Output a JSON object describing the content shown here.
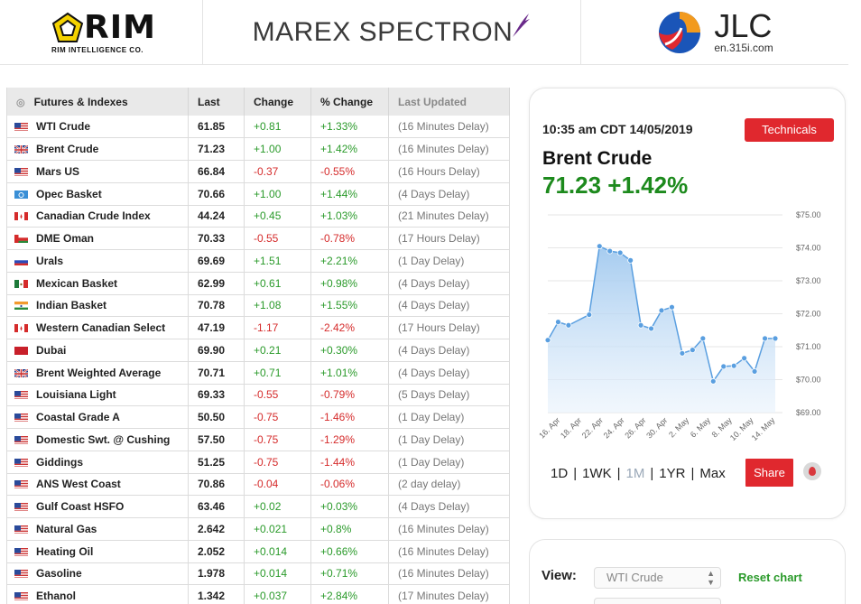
{
  "sponsors": {
    "rim_name": "RIM",
    "rim_sub": "RIM INTELLIGENCE CO.",
    "marex_name": "MAREX SPECTRON",
    "jlc_name": "JLC",
    "jlc_sub": "en.315i.com"
  },
  "table": {
    "headers": [
      "Futures & Indexes",
      "Last",
      "Change",
      "% Change",
      "Last Updated"
    ],
    "rows": [
      {
        "flag": "us",
        "name": "WTI Crude",
        "last": "61.85",
        "change": "+0.81",
        "pct": "+1.33%",
        "updated": "(16 Minutes Delay)"
      },
      {
        "flag": "uk",
        "name": "Brent Crude",
        "last": "71.23",
        "change": "+1.00",
        "pct": "+1.42%",
        "updated": "(16 Minutes Delay)"
      },
      {
        "flag": "us",
        "name": "Mars US",
        "last": "66.84",
        "change": "-0.37",
        "pct": "-0.55%",
        "updated": "(16 Hours Delay)"
      },
      {
        "flag": "opec",
        "name": "Opec Basket",
        "last": "70.66",
        "change": "+1.00",
        "pct": "+1.44%",
        "updated": "(4 Days Delay)"
      },
      {
        "flag": "ca",
        "name": "Canadian Crude Index",
        "last": "44.24",
        "change": "+0.45",
        "pct": "+1.03%",
        "updated": "(21 Minutes Delay)"
      },
      {
        "flag": "om",
        "name": "DME Oman",
        "last": "70.33",
        "change": "-0.55",
        "pct": "-0.78%",
        "updated": "(17 Hours Delay)"
      },
      {
        "flag": "ru",
        "name": "Urals",
        "last": "69.69",
        "change": "+1.51",
        "pct": "+2.21%",
        "updated": "(1 Day Delay)"
      },
      {
        "flag": "mx",
        "name": "Mexican Basket",
        "last": "62.99",
        "change": "+0.61",
        "pct": "+0.98%",
        "updated": "(4 Days Delay)"
      },
      {
        "flag": "in",
        "name": "Indian Basket",
        "last": "70.78",
        "change": "+1.08",
        "pct": "+1.55%",
        "updated": "(4 Days Delay)"
      },
      {
        "flag": "ca",
        "name": "Western Canadian Select",
        "last": "47.19",
        "change": "-1.17",
        "pct": "-2.42%",
        "updated": "(17 Hours Delay)"
      },
      {
        "flag": "ae",
        "name": "Dubai",
        "last": "69.90",
        "change": "+0.21",
        "pct": "+0.30%",
        "updated": "(4 Days Delay)"
      },
      {
        "flag": "uk",
        "name": "Brent Weighted Average",
        "last": "70.71",
        "change": "+0.71",
        "pct": "+1.01%",
        "updated": "(4 Days Delay)"
      },
      {
        "flag": "us",
        "name": "Louisiana Light",
        "last": "69.33",
        "change": "-0.55",
        "pct": "-0.79%",
        "updated": "(5 Days Delay)"
      },
      {
        "flag": "us",
        "name": "Coastal Grade A",
        "last": "50.50",
        "change": "-0.75",
        "pct": "-1.46%",
        "updated": "(1 Day Delay)"
      },
      {
        "flag": "us",
        "name": "Domestic Swt. @ Cushing",
        "last": "57.50",
        "change": "-0.75",
        "pct": "-1.29%",
        "updated": "(1 Day Delay)"
      },
      {
        "flag": "us",
        "name": "Giddings",
        "last": "51.25",
        "change": "-0.75",
        "pct": "-1.44%",
        "updated": "(1 Day Delay)"
      },
      {
        "flag": "us",
        "name": "ANS West Coast",
        "last": "70.86",
        "change": "-0.04",
        "pct": "-0.06%",
        "updated": "(2 day delay)"
      },
      {
        "flag": "us",
        "name": "Gulf Coast HSFO",
        "last": "63.46",
        "change": "+0.02",
        "pct": "+0.03%",
        "updated": "(4 Days Delay)"
      },
      {
        "flag": "us",
        "name": "Natural Gas",
        "last": "2.642",
        "change": "+0.021",
        "pct": "+0.8%",
        "updated": "(16 Minutes Delay)"
      },
      {
        "flag": "us",
        "name": "Heating Oil",
        "last": "2.052",
        "change": "+0.014",
        "pct": "+0.66%",
        "updated": "(16 Minutes Delay)"
      },
      {
        "flag": "us",
        "name": "Gasoline",
        "last": "1.978",
        "change": "+0.014",
        "pct": "+0.71%",
        "updated": "(16 Minutes Delay)"
      },
      {
        "flag": "us",
        "name": "Ethanol",
        "last": "1.342",
        "change": "+0.037",
        "pct": "+2.84%",
        "updated": "(17 Minutes Delay)"
      }
    ]
  },
  "card": {
    "timestamp": "10:35 am CDT 14/05/2019",
    "technicals_label": "Technicals",
    "name": "Brent Crude",
    "price": "71.23 +1.42%",
    "ranges": [
      "1D",
      "1WK",
      "1M",
      "1YR",
      "Max"
    ],
    "active_range": "1M",
    "share_label": "Share"
  },
  "view": {
    "label": "View:",
    "selected": "WTI Crude",
    "reset_label": "Reset chart"
  },
  "colors": {
    "accent_red": "#e0282e",
    "positive": "#2a9a2a",
    "negative": "#d52b2b",
    "chart_line": "#5a9fe0"
  },
  "chart_data": {
    "type": "area",
    "title": "Brent Crude",
    "ylim": [
      69,
      75
    ],
    "yticks": [
      "$75.00",
      "$74.00",
      "$73.00",
      "$72.00",
      "$71.00",
      "$70.00",
      "$69.00"
    ],
    "ytick_values": [
      75,
      74,
      73,
      72,
      71,
      70,
      69
    ],
    "xtick_labels": [
      "16. Apr",
      "18. Apr",
      "22. Apr",
      "24. Apr",
      "26. Apr",
      "30. Apr",
      "2. May",
      "6. May",
      "8. May",
      "10. May",
      "14. May"
    ],
    "x": [
      0,
      1,
      2,
      4,
      5,
      6,
      7,
      8,
      9,
      10,
      11,
      12,
      13,
      14,
      15,
      16,
      17,
      18,
      19,
      20,
      21,
      22
    ],
    "values": [
      71.2,
      71.75,
      71.65,
      71.97,
      74.05,
      73.9,
      73.85,
      73.62,
      71.65,
      71.55,
      72.1,
      72.2,
      70.8,
      70.9,
      71.25,
      69.95,
      70.4,
      70.42,
      70.65,
      70.25,
      71.25,
      71.25
    ]
  }
}
